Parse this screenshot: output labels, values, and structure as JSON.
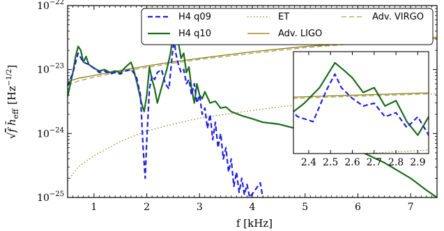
{
  "chart_data": {
    "type": "line",
    "xlabel": "f [kHz]",
    "ylabel": "√f h̃eff [Hz^-1/2]",
    "ylabel_parts": {
      "root": "√",
      "f": "f",
      "h": "h̃",
      "sub": "eff",
      "unit_open": "[Hz",
      "unit_exp": "−1/2",
      "unit_close": "]"
    },
    "xlim": [
      0.5,
      7.5
    ],
    "ylim": [
      1e-25,
      1e-22
    ],
    "yscale": "log",
    "x_ticks": [
      1,
      2,
      3,
      4,
      5,
      6,
      7
    ],
    "y_ticks": [
      {
        "value": 1e-25,
        "base": "10",
        "exp": "−25"
      },
      {
        "value": 1e-24,
        "base": "10",
        "exp": "−24"
      },
      {
        "value": 1e-23,
        "base": "10",
        "exp": "−23"
      },
      {
        "value": 1e-22,
        "base": "10",
        "exp": "−22"
      }
    ],
    "legend_position": "top-right",
    "series": [
      {
        "name": "H4 q09",
        "color": "#1f1fe0",
        "style": "dashed",
        "width": 2.2,
        "points": [
          [
            0.5,
            5.5e-24
          ],
          [
            0.6,
            9e-24
          ],
          [
            0.7,
            1.8e-23
          ],
          [
            0.8,
            1.3e-23
          ],
          [
            0.9,
            1.2e-23
          ],
          [
            1.0,
            1.05e-23
          ],
          [
            1.1,
            9e-24
          ],
          [
            1.2,
            9.5e-24
          ],
          [
            1.3,
            8.5e-24
          ],
          [
            1.4,
            9e-24
          ],
          [
            1.5,
            8.5e-24
          ],
          [
            1.6,
            9.5e-24
          ],
          [
            1.7,
            1e-23
          ],
          [
            1.8,
            8e-24
          ],
          [
            1.88,
            4e-24
          ],
          [
            1.93,
            6e-25
          ],
          [
            1.97,
            2e-25
          ],
          [
            2.0,
            8e-25
          ],
          [
            2.05,
            5e-24
          ],
          [
            2.1,
            8e-24
          ],
          [
            2.15,
            7e-24
          ],
          [
            2.2,
            9e-24
          ],
          [
            2.28,
            1e-23
          ],
          [
            2.35,
            6e-24
          ],
          [
            2.42,
            5e-24
          ],
          [
            2.48,
            1.6e-23
          ],
          [
            2.52,
            3e-23
          ],
          [
            2.55,
            1.8e-23
          ],
          [
            2.6,
            1.2e-23
          ],
          [
            2.65,
            9e-24
          ],
          [
            2.7,
            1e-23
          ],
          [
            2.75,
            6e-24
          ],
          [
            2.8,
            7e-24
          ],
          [
            2.85,
            4e-24
          ],
          [
            2.9,
            6e-24
          ],
          [
            2.95,
            3e-24
          ],
          [
            3.0,
            4e-24
          ],
          [
            3.05,
            2e-24
          ],
          [
            3.1,
            2.5e-24
          ],
          [
            3.15,
            1.2e-24
          ],
          [
            3.2,
            2e-24
          ],
          [
            3.25,
            8e-25
          ],
          [
            3.3,
            1.5e-24
          ],
          [
            3.35,
            6e-25
          ],
          [
            3.4,
            1e-24
          ],
          [
            3.45,
            4e-25
          ],
          [
            3.5,
            6e-25
          ],
          [
            3.55,
            2.5e-25
          ],
          [
            3.6,
            4e-25
          ],
          [
            3.65,
            1.5e-25
          ],
          [
            3.7,
            2.5e-25
          ],
          [
            3.75,
            1.2e-25
          ],
          [
            3.8,
            2e-25
          ],
          [
            3.85,
            1.1e-25
          ],
          [
            3.9,
            1.6e-25
          ],
          [
            3.95,
            1e-25
          ],
          [
            4.05,
            1.3e-25
          ],
          [
            4.15,
            1.7e-25
          ],
          [
            4.2,
            1e-25
          ]
        ]
      },
      {
        "name": "H4 q10",
        "color": "#1a6b1a",
        "style": "solid",
        "width": 2.2,
        "points": [
          [
            0.5,
            3.8e-24
          ],
          [
            0.6,
            9e-24
          ],
          [
            0.65,
            1.6e-23
          ],
          [
            0.7,
            2.3e-23
          ],
          [
            0.75,
            2e-23
          ],
          [
            0.8,
            1.3e-23
          ],
          [
            0.85,
            1.6e-23
          ],
          [
            0.9,
            1.2e-23
          ],
          [
            1.0,
            1.05e-23
          ],
          [
            1.1,
            9.5e-24
          ],
          [
            1.2,
            1e-23
          ],
          [
            1.3,
            9e-24
          ],
          [
            1.4,
            9.5e-24
          ],
          [
            1.5,
            9e-24
          ],
          [
            1.6,
            1.1e-23
          ],
          [
            1.7,
            1.3e-23
          ],
          [
            1.75,
            1e-23
          ],
          [
            1.82,
            6e-24
          ],
          [
            1.9,
            3e-24
          ],
          [
            1.95,
            2.2e-24
          ],
          [
            2.0,
            4e-24
          ],
          [
            2.05,
            1.1e-23
          ],
          [
            2.1,
            7e-24
          ],
          [
            2.15,
            5e-24
          ],
          [
            2.2,
            3e-24
          ],
          [
            2.3,
            6e-24
          ],
          [
            2.38,
            1e-23
          ],
          [
            2.45,
            1.8e-23
          ],
          [
            2.52,
            4.6e-23
          ],
          [
            2.56,
            3.5e-23
          ],
          [
            2.6,
            2.6e-23
          ],
          [
            2.65,
            1.5e-23
          ],
          [
            2.7,
            1.8e-23
          ],
          [
            2.75,
            9e-24
          ],
          [
            2.8,
            1.1e-23
          ],
          [
            2.85,
            5e-24
          ],
          [
            2.9,
            3e-24
          ],
          [
            2.95,
            6e-24
          ],
          [
            3.0,
            4e-24
          ],
          [
            3.05,
            3.5e-24
          ],
          [
            3.1,
            4.5e-24
          ],
          [
            3.2,
            3e-24
          ],
          [
            3.3,
            3.2e-24
          ],
          [
            3.4,
            2.5e-24
          ],
          [
            3.5,
            2.6e-24
          ],
          [
            3.6,
            2.2e-24
          ],
          [
            3.8,
            1.9e-24
          ],
          [
            4.0,
            1.7e-24
          ],
          [
            4.2,
            1.5e-24
          ],
          [
            4.5,
            1.4e-24
          ],
          [
            5.0,
            1.1e-24
          ],
          [
            5.5,
            8e-25
          ],
          [
            6.0,
            5.5e-25
          ],
          [
            6.5,
            3.5e-25
          ],
          [
            7.0,
            2e-25
          ],
          [
            7.3,
            1.3e-25
          ],
          [
            7.5,
            1e-25
          ]
        ]
      },
      {
        "name": "ET",
        "color": "#8a7a10",
        "style": "dotted",
        "width": 1.2,
        "points": [
          [
            0.5,
            1.8e-25
          ],
          [
            0.7,
            3e-25
          ],
          [
            1.0,
            4.5e-25
          ],
          [
            1.5,
            7.5e-25
          ],
          [
            2.0,
            1.1e-24
          ],
          [
            2.5,
            1.4e-24
          ],
          [
            3.0,
            1.75e-24
          ],
          [
            4.0,
            2.3e-24
          ],
          [
            5.0,
            2.9e-24
          ],
          [
            6.0,
            3.5e-24
          ],
          [
            7.0,
            4e-24
          ],
          [
            7.5,
            4.2e-24
          ]
        ]
      },
      {
        "name": "Adv. LIGO",
        "color": "#8a7a10",
        "style": "solid",
        "width": 1.3,
        "points": [
          [
            0.5,
            6.5e-24
          ],
          [
            0.7,
            7.3e-24
          ],
          [
            1.0,
            8.1e-24
          ],
          [
            1.5,
            9.7e-24
          ],
          [
            2.0,
            1.14e-23
          ],
          [
            2.5,
            1.32e-23
          ],
          [
            3.0,
            1.5e-23
          ],
          [
            4.0,
            1.9e-23
          ],
          [
            5.0,
            2.3e-23
          ],
          [
            6.0,
            2.6e-23
          ],
          [
            7.0,
            3e-23
          ],
          [
            7.5,
            3.2e-23
          ]
        ]
      },
      {
        "name": "Adv. VIRGO",
        "color": "#a8a050",
        "style": "dashed",
        "width": 1.3,
        "points": [
          [
            0.5,
            5.7e-24
          ],
          [
            0.7,
            6.6e-24
          ],
          [
            1.0,
            7.6e-24
          ],
          [
            1.5,
            9.2e-24
          ],
          [
            2.0,
            1.08e-23
          ],
          [
            2.5,
            1.26e-23
          ],
          [
            3.0,
            1.44e-23
          ],
          [
            4.0,
            1.8e-23
          ],
          [
            5.0,
            2.2e-23
          ],
          [
            6.0,
            2.55e-23
          ],
          [
            7.0,
            2.9e-23
          ],
          [
            7.5,
            3.05e-23
          ]
        ]
      }
    ],
    "inset": {
      "xlim": [
        2.33,
        2.95
      ],
      "x_ticks": [
        2.4,
        2.5,
        2.6,
        2.7,
        2.8,
        2.9
      ],
      "x_tick_labels": [
        "2.4",
        "2.5",
        "2.6",
        "2.7",
        "2.8",
        "2.9"
      ],
      "ylim": [
        1.5e-24,
        7e-23
      ],
      "yscale": "log"
    }
  }
}
